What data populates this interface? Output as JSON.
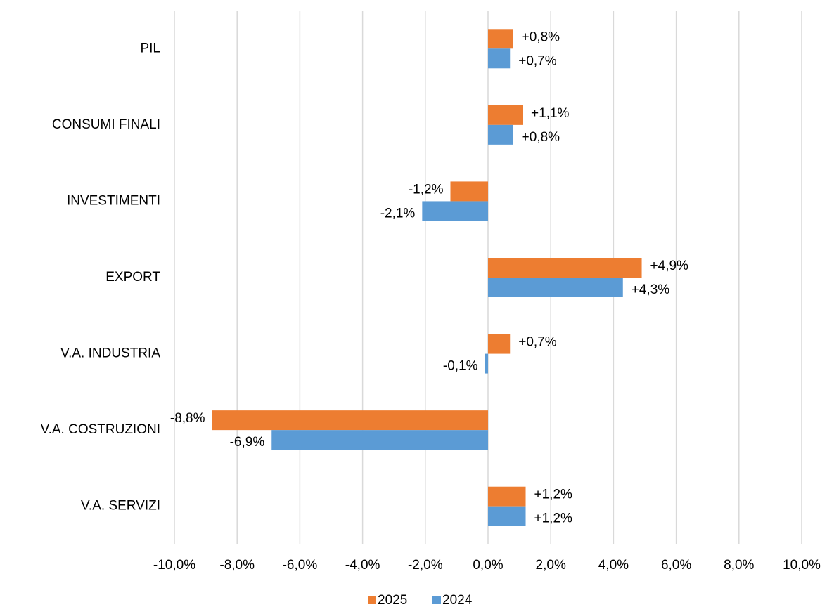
{
  "chart_data": {
    "type": "barh",
    "categories": [
      "PIL",
      "CONSUMI FINALI",
      "INVESTIMENTI",
      "EXPORT",
      "V.A. INDUSTRIA",
      "V.A. COSTRUZIONI",
      "V.A. SERVIZI"
    ],
    "series": [
      {
        "name": "2025",
        "color": "#ed7d31",
        "values": [
          0.8,
          1.1,
          -1.2,
          4.9,
          0.7,
          -8.8,
          1.2
        ],
        "value_labels": [
          "+0,8%",
          "+1,1%",
          "-1,2%",
          "+4,9%",
          "+0,7%",
          "-8,8%",
          "+1,2%"
        ]
      },
      {
        "name": "2024",
        "color": "#5b9bd5",
        "values": [
          0.7,
          0.8,
          -2.1,
          4.3,
          -0.1,
          -6.9,
          1.2
        ],
        "value_labels": [
          "+0,7%",
          "+0,8%",
          "-2,1%",
          "+4,3%",
          "-0,1%",
          "-6,9%",
          "+1,2%"
        ]
      }
    ],
    "xlim": [
      -10,
      10
    ],
    "xticks": [
      {
        "value": -10,
        "label": "-10,0%"
      },
      {
        "value": -8,
        "label": "-8,0%"
      },
      {
        "value": -6,
        "label": "-6,0%"
      },
      {
        "value": -4,
        "label": "-4,0%"
      },
      {
        "value": -2,
        "label": "-2,0%"
      },
      {
        "value": 0,
        "label": "0,0%"
      },
      {
        "value": 2,
        "label": "2,0%"
      },
      {
        "value": 4,
        "label": "4,0%"
      },
      {
        "value": 6,
        "label": "6,0%"
      },
      {
        "value": 8,
        "label": "8,0%"
      },
      {
        "value": 10,
        "label": "10,0%"
      }
    ],
    "grid": true,
    "legend": "bottom"
  }
}
